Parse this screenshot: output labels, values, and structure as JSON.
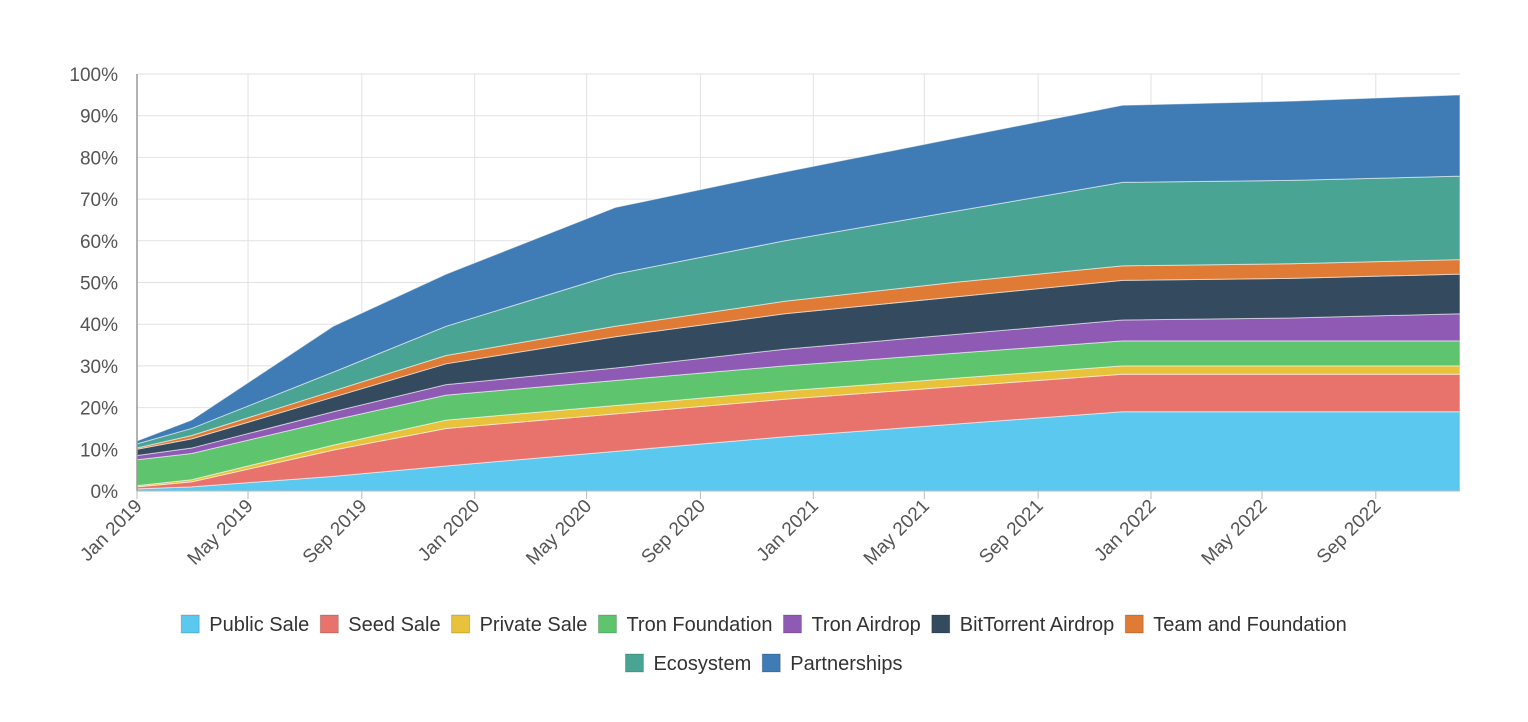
{
  "chart_data": {
    "type": "area",
    "stacked": true,
    "title": "",
    "xlabel": "",
    "ylabel": "",
    "ylim": [
      0,
      100
    ],
    "y_unit": "%",
    "y_ticks": [
      "0%",
      "10%",
      "20%",
      "30%",
      "40%",
      "50%",
      "60%",
      "70%",
      "80%",
      "90%",
      "100%"
    ],
    "x_ticks": [
      "Jan 2019",
      "May 2019",
      "Sep 2019",
      "Jan 2020",
      "May 2020",
      "Sep 2020",
      "Jan 2021",
      "May 2021",
      "Sep 2021",
      "Jan 2022",
      "May 2022",
      "Sep 2022"
    ],
    "x": [
      "2019-01",
      "2019-03",
      "2019-08",
      "2019-12",
      "2020-06",
      "2020-12",
      "2021-06",
      "2021-12",
      "2022-06",
      "2022-12"
    ],
    "grid": true,
    "legend_position": "bottom",
    "series": [
      {
        "name": "Public Sale",
        "color": "#5bc8f0",
        "values": [
          0.5,
          1.0,
          3.5,
          6.0,
          9.5,
          13.0,
          16.0,
          19.0,
          19.0,
          19.0
        ]
      },
      {
        "name": "Seed Sale",
        "color": "#e8736c",
        "values": [
          0.5,
          1.2,
          6.3,
          9.0,
          9.0,
          9.0,
          9.0,
          9.0,
          9.0,
          9.0
        ]
      },
      {
        "name": "Private Sale",
        "color": "#e8c23a",
        "values": [
          0.3,
          0.5,
          1.2,
          2.0,
          2.0,
          2.0,
          2.0,
          2.0,
          2.0,
          2.0
        ]
      },
      {
        "name": "Tron Foundation",
        "color": "#5ec46e",
        "values": [
          6.2,
          6.3,
          6.0,
          6.0,
          6.0,
          6.0,
          6.0,
          6.0,
          6.0,
          6.0
        ]
      },
      {
        "name": "Tron Airdrop",
        "color": "#8e5ab3",
        "values": [
          1.0,
          1.3,
          2.0,
          2.5,
          3.0,
          4.0,
          4.5,
          5.0,
          5.5,
          6.5
        ]
      },
      {
        "name": "BitTorrent Airdrop",
        "color": "#344a5e",
        "values": [
          1.5,
          2.2,
          3.5,
          5.0,
          7.5,
          8.5,
          9.0,
          9.5,
          9.5,
          9.5
        ]
      },
      {
        "name": "Team and Foundation",
        "color": "#df7b35",
        "values": [
          0.3,
          0.8,
          1.5,
          2.0,
          2.5,
          3.0,
          3.5,
          3.5,
          3.5,
          3.5
        ]
      },
      {
        "name": "Ecosystem",
        "color": "#4aa494",
        "values": [
          1.0,
          1.7,
          4.5,
          7.0,
          12.5,
          14.5,
          17.0,
          20.0,
          20.0,
          20.0
        ]
      },
      {
        "name": "Partnerships",
        "color": "#3f7bb4",
        "values": [
          0.7,
          2.0,
          11.0,
          12.5,
          16.0,
          16.5,
          17.5,
          18.5,
          19.0,
          19.5
        ]
      }
    ]
  }
}
